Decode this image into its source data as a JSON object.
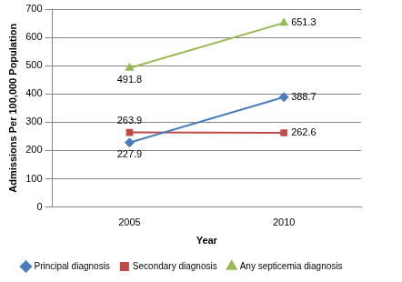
{
  "chart_data": {
    "type": "line",
    "x_label": "Year",
    "y_label": "Admissions Per 100,000 Population",
    "categories": [
      "2005",
      "2010"
    ],
    "series": [
      {
        "name": "Principal diagnosis",
        "color": "#4a7ebb",
        "marker": "diamond",
        "values": [
          227.9,
          388.7
        ]
      },
      {
        "name": "Secondary diagnosis",
        "color": "#be4b48",
        "marker": "square",
        "values": [
          263.9,
          262.6
        ]
      },
      {
        "name": "Any septicemia diagnosis",
        "color": "#98b954",
        "marker": "triangle",
        "values": [
          491.8,
          651.3
        ]
      }
    ],
    "ylim": [
      0,
      700
    ],
    "yticks": [
      0,
      100,
      200,
      300,
      400,
      500,
      600,
      700
    ],
    "grid": true,
    "legend": "bottom",
    "data_labels": true
  }
}
